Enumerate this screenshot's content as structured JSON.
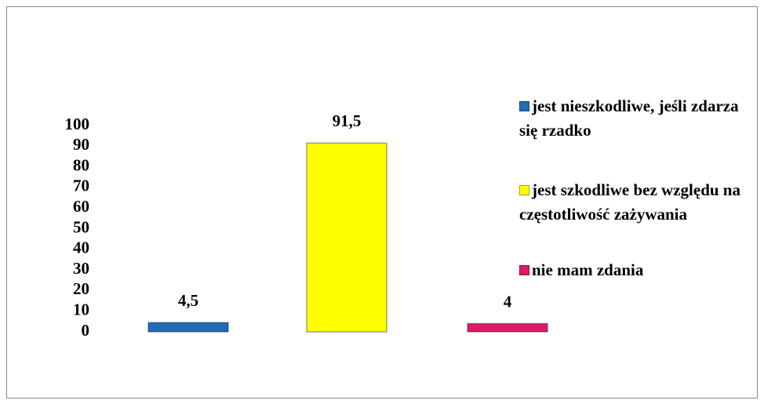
{
  "chart_data": {
    "type": "bar",
    "series": [
      {
        "name": "jest nieszkodliwe, jeśli zdarza się rzadko",
        "color": "#1f6db4",
        "values": [
          4.5
        ],
        "value_labels": [
          "4,5"
        ]
      },
      {
        "name": "jest szkodliwe bez względu na częstotliwość zażywania",
        "color": "#ffff00",
        "values": [
          91.5
        ],
        "value_labels": [
          "91,5"
        ]
      },
      {
        "name": "nie mam zdania",
        "color": "#e0196b",
        "values": [
          4
        ],
        "value_labels": [
          "4"
        ]
      }
    ],
    "ylim": [
      0,
      100
    ],
    "yticks": [
      0,
      10,
      20,
      30,
      40,
      50,
      60,
      70,
      80,
      90,
      100
    ],
    "grid": false,
    "legend": "right"
  }
}
